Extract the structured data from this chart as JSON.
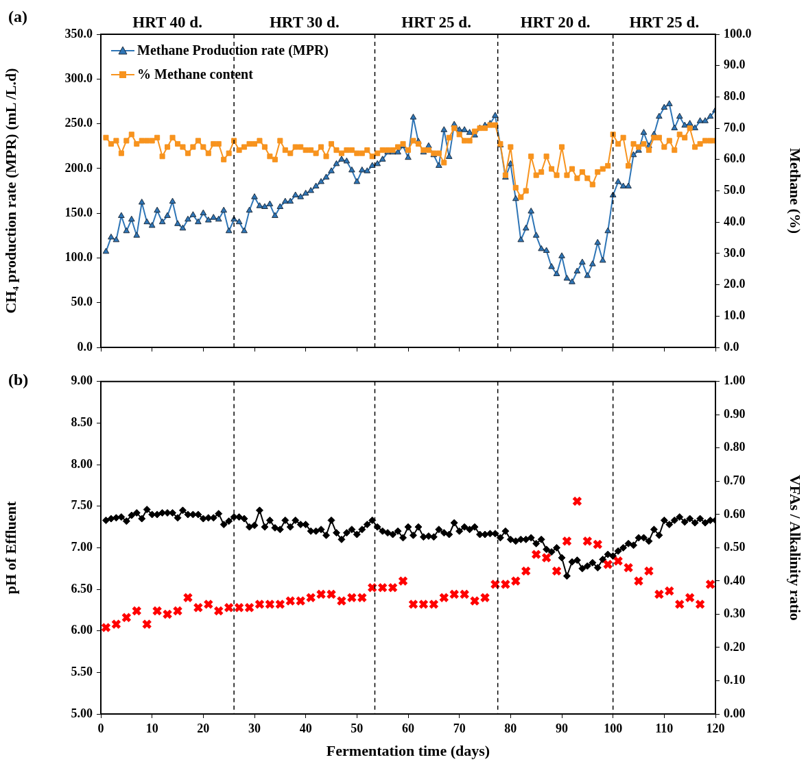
{
  "chart_data": [
    {
      "type": "line",
      "title": null,
      "ylabel": "CH₄ production rate (MPR) (mL /L.d)",
      "y2label": "Methane (%)",
      "annotations": [
        "(a)",
        "HRT 40 d.",
        "HRT 30 d.",
        "HRT 25 d.",
        "HRT 20 d.",
        "HRT 25 d."
      ],
      "x": [
        1,
        2,
        3,
        4,
        5,
        6,
        7,
        8,
        9,
        10,
        11,
        12,
        13,
        14,
        15,
        16,
        17,
        18,
        19,
        20,
        21,
        22,
        23,
        24,
        25,
        26,
        27,
        28,
        29,
        30,
        31,
        32,
        33,
        34,
        35,
        36,
        37,
        38,
        39,
        40,
        41,
        42,
        43,
        44,
        45,
        46,
        47,
        48,
        49,
        50,
        51,
        52,
        53,
        54,
        55,
        56,
        57,
        58,
        59,
        60,
        61,
        62,
        63,
        64,
        65,
        66,
        67,
        68,
        69,
        70,
        71,
        72,
        73,
        74,
        75,
        76,
        77,
        78,
        79,
        80,
        81,
        82,
        83,
        84,
        85,
        86,
        87,
        88,
        89,
        90,
        91,
        92,
        93,
        94,
        95,
        96,
        97,
        98,
        99,
        100,
        101,
        102,
        103,
        104,
        105,
        106,
        107,
        108,
        109,
        110,
        111,
        112,
        113,
        114,
        115,
        116,
        117,
        118,
        119,
        120
      ],
      "series": [
        {
          "name": "Methane Production rate (MPR)",
          "marker": "triangle",
          "color": "#2e75b6",
          "values": [
            107,
            123,
            120,
            147,
            130,
            143,
            125,
            162,
            140,
            136,
            153,
            140,
            147,
            163,
            138,
            133,
            143,
            148,
            140,
            150,
            142,
            145,
            143,
            153,
            130,
            143,
            140,
            130,
            153,
            168,
            158,
            157,
            160,
            147,
            157,
            163,
            163,
            170,
            168,
            172,
            175,
            180,
            185,
            190,
            197,
            205,
            210,
            208,
            198,
            185,
            198,
            197,
            203,
            205,
            210,
            218,
            218,
            218,
            225,
            212,
            257,
            230,
            218,
            225,
            215,
            203,
            243,
            213,
            249,
            243,
            243,
            240,
            237,
            245,
            248,
            250,
            259,
            226,
            190,
            205,
            166,
            120,
            133,
            152,
            125,
            110,
            108,
            90,
            82,
            102,
            77,
            73,
            85,
            95,
            80,
            93,
            117,
            97,
            130,
            170,
            185,
            180,
            180,
            215,
            220,
            240,
            225,
            238,
            258,
            268,
            272,
            245,
            258,
            248,
            250,
            245,
            253,
            253,
            258,
            265
          ]
        },
        {
          "name": "% Methane content",
          "marker": "square",
          "axis": "y2",
          "color": "#f7931e",
          "values": [
            67,
            65,
            66,
            62,
            66,
            68,
            65,
            66,
            66,
            66,
            67,
            61,
            64,
            67,
            65,
            64,
            62,
            64,
            66,
            64,
            62,
            65,
            65,
            60,
            62,
            66,
            63,
            64,
            65,
            65,
            66,
            64,
            61,
            60,
            66,
            63,
            62,
            64,
            64,
            63,
            63,
            62,
            64,
            61,
            65,
            63,
            62,
            63,
            63,
            62,
            62,
            63,
            61,
            62,
            63,
            63,
            63,
            64,
            65,
            63,
            66,
            65,
            63,
            63,
            62,
            62,
            59,
            67,
            70,
            68,
            66,
            66,
            69,
            70,
            70,
            71,
            71,
            65,
            55,
            64,
            51,
            48,
            50,
            61,
            55,
            56,
            61,
            57,
            55,
            64,
            55,
            57,
            54,
            56,
            54,
            52,
            56,
            57,
            58,
            68,
            65,
            67,
            58,
            65,
            64,
            65,
            63,
            67,
            67,
            64,
            66,
            63,
            68,
            67,
            70,
            64,
            65,
            66,
            66,
            66
          ]
        }
      ],
      "xlim": [
        0,
        120
      ],
      "xticks": [
        0,
        10,
        20,
        30,
        40,
        50,
        60,
        70,
        80,
        90,
        100,
        110,
        120
      ],
      "ylim": [
        0,
        350
      ],
      "yticks": [
        {
          "value": 0,
          "label": "0.0"
        },
        {
          "value": 50,
          "label": "50.0"
        },
        {
          "value": 100,
          "label": "100.0"
        },
        {
          "value": 150,
          "label": "150.0"
        },
        {
          "value": 200,
          "label": "200.0"
        },
        {
          "value": 250,
          "label": "250.0"
        },
        {
          "value": 300,
          "label": "300.0"
        },
        {
          "value": 350,
          "label": "350.0"
        }
      ],
      "y2lim": [
        0,
        100
      ],
      "y2ticks": [
        {
          "value": 0,
          "label": "0.0"
        },
        {
          "value": 10,
          "label": "10.0"
        },
        {
          "value": 20,
          "label": "20.0"
        },
        {
          "value": 30,
          "label": "30.0"
        },
        {
          "value": 40,
          "label": "40.0"
        },
        {
          "value": 50,
          "label": "50.0"
        },
        {
          "value": 60,
          "label": "60.0"
        },
        {
          "value": 70,
          "label": "70.0"
        },
        {
          "value": 80,
          "label": "80.0"
        },
        {
          "value": 90,
          "label": "90.0"
        },
        {
          "value": 100,
          "label": "100.0"
        }
      ],
      "ref_lines": [
        {
          "axis": "x",
          "value": 26,
          "line_style": "dashed",
          "color": "#000000"
        },
        {
          "axis": "x",
          "value": 53.5,
          "line_style": "dashed",
          "color": "#000000"
        },
        {
          "axis": "x",
          "value": 77.5,
          "line_style": "dashed",
          "color": "#000000"
        },
        {
          "axis": "x",
          "value": 100,
          "line_style": "dashed",
          "color": "#000000"
        }
      ],
      "tick_labels": "y",
      "legend": "top left",
      "line_style": "solid"
    },
    {
      "type": "line",
      "xlabel": "Fermentation time (days)",
      "ylabel": "pH of Effluent",
      "y2label": "VFAs / Alkalinity ratio",
      "annotations": [
        "(b)"
      ],
      "x": [
        1,
        2,
        3,
        4,
        5,
        6,
        7,
        8,
        9,
        10,
        11,
        12,
        13,
        14,
        15,
        16,
        17,
        18,
        19,
        20,
        21,
        22,
        23,
        24,
        25,
        26,
        27,
        28,
        29,
        30,
        31,
        32,
        33,
        34,
        35,
        36,
        37,
        38,
        39,
        40,
        41,
        42,
        43,
        44,
        45,
        46,
        47,
        48,
        49,
        50,
        51,
        52,
        53,
        54,
        55,
        56,
        57,
        58,
        59,
        60,
        61,
        62,
        63,
        64,
        65,
        66,
        67,
        68,
        69,
        70,
        71,
        72,
        73,
        74,
        75,
        76,
        77,
        78,
        79,
        80,
        81,
        82,
        83,
        84,
        85,
        86,
        87,
        88,
        89,
        90,
        91,
        92,
        93,
        94,
        95,
        96,
        97,
        98,
        99,
        100,
        101,
        102,
        103,
        104,
        105,
        106,
        107,
        108,
        109,
        110,
        111,
        112,
        113,
        114,
        115,
        116,
        117,
        118,
        119,
        120
      ],
      "series": [
        {
          "marker": "diamond",
          "color": "#000000",
          "values": [
            7.33,
            7.35,
            7.36,
            7.37,
            7.32,
            7.39,
            7.42,
            7.35,
            7.46,
            7.4,
            7.4,
            7.42,
            7.42,
            7.42,
            7.36,
            7.45,
            7.4,
            7.4,
            7.4,
            7.35,
            7.36,
            7.36,
            7.41,
            7.28,
            7.32,
            7.37,
            7.37,
            7.35,
            7.25,
            7.27,
            7.45,
            7.25,
            7.33,
            7.24,
            7.22,
            7.33,
            7.25,
            7.33,
            7.28,
            7.28,
            7.2,
            7.2,
            7.22,
            7.15,
            7.33,
            7.18,
            7.1,
            7.18,
            7.22,
            7.16,
            7.22,
            7.28,
            7.33,
            7.25,
            7.2,
            7.18,
            7.16,
            7.2,
            7.12,
            7.25,
            7.15,
            7.25,
            7.13,
            7.14,
            7.13,
            7.22,
            7.18,
            7.16,
            7.3,
            7.2,
            7.25,
            7.22,
            7.25,
            7.16,
            7.16,
            7.17,
            7.17,
            7.12,
            7.2,
            7.1,
            7.08,
            7.1,
            7.1,
            7.12,
            7.05,
            7.1,
            6.98,
            6.95,
            7.0,
            6.88,
            6.66,
            6.83,
            6.85,
            6.75,
            6.78,
            6.82,
            6.76,
            6.86,
            6.92,
            6.9,
            6.96,
            7.0,
            7.05,
            7.03,
            7.12,
            7.12,
            7.08,
            7.22,
            7.15,
            7.33,
            7.28,
            7.33,
            7.37,
            7.31,
            7.35,
            7.3,
            7.35,
            7.3,
            7.33,
            7.33
          ]
        },
        {
          "type": "scatter",
          "marker": "cross",
          "axis": "y2",
          "color": "#ff0000",
          "x": [
            1,
            3,
            5,
            7,
            9,
            11,
            13,
            15,
            17,
            19,
            21,
            23,
            25,
            27,
            29,
            31,
            33,
            35,
            37,
            39,
            41,
            43,
            45,
            47,
            49,
            51,
            53,
            55,
            57,
            59,
            61,
            63,
            65,
            67,
            69,
            71,
            73,
            75,
            77,
            79,
            81,
            83,
            85,
            87,
            89,
            91,
            93,
            95,
            97,
            99,
            101,
            103,
            105,
            107,
            109,
            111,
            113,
            115,
            117,
            119
          ],
          "values": [
            0.26,
            0.27,
            0.29,
            0.31,
            0.27,
            0.31,
            0.3,
            0.31,
            0.35,
            0.32,
            0.33,
            0.31,
            0.32,
            0.32,
            0.32,
            0.33,
            0.33,
            0.33,
            0.34,
            0.34,
            0.35,
            0.36,
            0.36,
            0.34,
            0.35,
            0.35,
            0.38,
            0.38,
            0.38,
            0.4,
            0.33,
            0.33,
            0.33,
            0.35,
            0.36,
            0.36,
            0.34,
            0.35,
            0.39,
            0.39,
            0.4,
            0.43,
            0.48,
            0.47,
            0.43,
            0.52,
            0.64,
            0.52,
            0.51,
            0.45,
            0.46,
            0.44,
            0.4,
            0.43,
            0.36,
            0.37,
            0.33,
            0.35,
            0.33,
            0.39
          ]
        }
      ],
      "xlim": [
        0,
        120
      ],
      "xticks": [
        0,
        10,
        20,
        30,
        40,
        50,
        60,
        70,
        80,
        90,
        100,
        110,
        120
      ],
      "ylim": [
        5,
        9
      ],
      "yticks": [
        {
          "value": 5,
          "label": "5.00"
        },
        {
          "value": 5.5,
          "label": "5.50"
        },
        {
          "value": 6,
          "label": "6.00"
        },
        {
          "value": 6.5,
          "label": "6.50"
        },
        {
          "value": 7,
          "label": "7.00"
        },
        {
          "value": 7.5,
          "label": "7.50"
        },
        {
          "value": 8,
          "label": "8.00"
        },
        {
          "value": 8.5,
          "label": "8.50"
        },
        {
          "value": 9,
          "label": "9.00"
        }
      ],
      "y2lim": [
        0,
        1
      ],
      "y2ticks": [
        {
          "value": 0,
          "label": "0.00"
        },
        {
          "value": 0.1,
          "label": "0.10"
        },
        {
          "value": 0.2,
          "label": "0.20"
        },
        {
          "value": 0.3,
          "label": "0.30"
        },
        {
          "value": 0.4,
          "label": "0.40"
        },
        {
          "value": 0.5,
          "label": "0.50"
        },
        {
          "value": 0.6,
          "label": "0.60"
        },
        {
          "value": 0.7,
          "label": "0.70"
        },
        {
          "value": 0.8,
          "label": "0.80"
        },
        {
          "value": 0.9,
          "label": "0.90"
        },
        {
          "value": 1,
          "label": "1.00"
        }
      ],
      "ref_lines": [
        {
          "axis": "x",
          "value": 26,
          "line_style": "dashed",
          "color": "#000000"
        },
        {
          "axis": "x",
          "value": 53.5,
          "line_style": "dashed",
          "color": "#000000"
        },
        {
          "axis": "x",
          "value": 77.5,
          "line_style": "dashed",
          "color": "#000000"
        },
        {
          "axis": "x",
          "value": 100,
          "line_style": "dashed",
          "color": "#000000"
        }
      ],
      "line_style": "solid"
    }
  ]
}
